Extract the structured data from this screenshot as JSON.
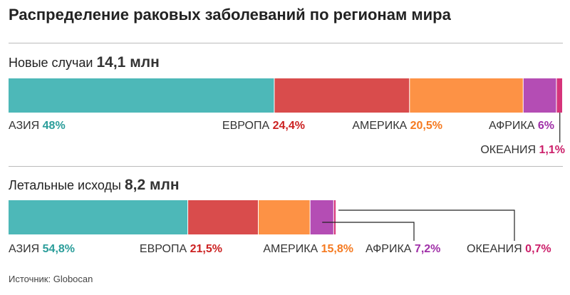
{
  "title": "Распределение раковых заболеваний по регионам мира",
  "source": "Источник: Globocan",
  "chart_data": [
    {
      "type": "bar",
      "orientation": "horizontal-stacked",
      "label": "Новые случаи",
      "total_label": "14,1 млн",
      "total": 14.1,
      "unit": "%",
      "categories": [
        "АЗИЯ",
        "ЕВРОПА",
        "АМЕРИКА",
        "АФРИКА",
        "ОКЕАНИЯ"
      ],
      "values": [
        48,
        24.4,
        20.5,
        6,
        1.1
      ],
      "value_labels": [
        "48%",
        "24,4%",
        "20,5%",
        "6%",
        "1,1%"
      ]
    },
    {
      "type": "bar",
      "orientation": "horizontal-stacked",
      "label": "Летальные исходы",
      "total_label": "8,2 млн",
      "total": 8.2,
      "unit": "%",
      "categories": [
        "АЗИЯ",
        "ЕВРОПА",
        "АМЕРИКА",
        "АФРИКА",
        "ОКЕАНИЯ"
      ],
      "values": [
        54.8,
        21.5,
        15.8,
        7.2,
        0.7
      ],
      "value_labels": [
        "54,8%",
        "21,5%",
        "15,8%",
        "7,2%",
        "0,7%"
      ]
    }
  ],
  "colors": {
    "bar": [
      "#4db8b8",
      "#d94c4c",
      "#fd9245",
      "#b44db4",
      "#d6337a"
    ],
    "text": [
      "#2a9d9a",
      "#cc2222",
      "#f57a20",
      "#a030a8",
      "#cc1f6a"
    ]
  }
}
